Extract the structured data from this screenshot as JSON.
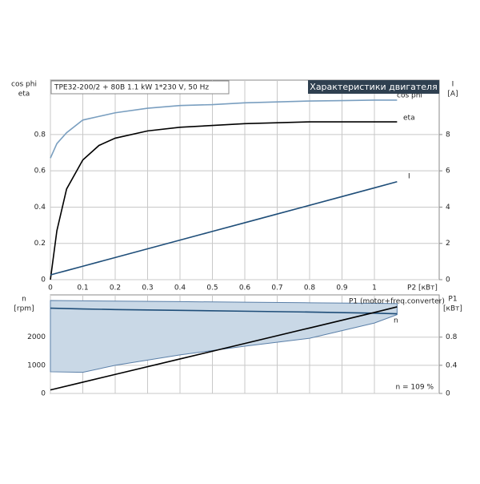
{
  "chart_data": [
    {
      "type": "line",
      "title": "TPE32-200/2 + 80B   1.1 kW   1*230 V, 50 Hz",
      "header": "Характеристики двигателя",
      "ylabel": [
        "cos phi",
        "eta"
      ],
      "y2label": [
        "I",
        "[A]"
      ],
      "xlabel": "P2 [кВт]",
      "x": [
        0,
        0.02,
        0.05,
        0.1,
        0.15,
        0.2,
        0.3,
        0.4,
        0.5,
        0.6,
        0.7,
        0.8,
        0.9,
        1.0,
        1.07
      ],
      "series": [
        {
          "name": "cos phi",
          "color": "#7a9fc0",
          "values": [
            0.67,
            0.75,
            0.81,
            0.88,
            0.9,
            0.92,
            0.945,
            0.96,
            0.965,
            0.975,
            0.98,
            0.985,
            0.987,
            0.99,
            0.99
          ]
        },
        {
          "name": "eta",
          "color": "#000000",
          "values": [
            0,
            0.27,
            0.5,
            0.66,
            0.74,
            0.78,
            0.82,
            0.84,
            0.85,
            0.86,
            0.865,
            0.87,
            0.87,
            0.87,
            0.87
          ]
        },
        {
          "name": "I",
          "color": "#1f4e79",
          "axis": "y2",
          "values": [
            0.26,
            0.36,
            0.5,
            0.74,
            0.98,
            1.22,
            1.7,
            2.18,
            2.66,
            3.14,
            3.62,
            4.1,
            4.58,
            5.06,
            5.4
          ]
        }
      ],
      "xlim": [
        0,
        1.2
      ],
      "xticks": [
        0,
        0.1,
        0.2,
        0.3,
        0.4,
        0.5,
        0.6,
        0.7,
        0.8,
        0.9,
        1.0
      ],
      "ylim": [
        0,
        1.1
      ],
      "yticks": [
        0,
        0.2,
        0.4,
        0.6,
        0.8
      ],
      "y2lim": [
        0,
        11
      ],
      "y2ticks": [
        0,
        2,
        4,
        6,
        8
      ],
      "grid": true
    },
    {
      "type": "line",
      "ylabel": [
        "n",
        "[rpm]"
      ],
      "y2label": [
        "P1",
        "[кВт]"
      ],
      "annotation": "n = 109 %",
      "x": [
        0,
        0.1,
        0.2,
        0.4,
        0.6,
        0.8,
        1.0,
        1.07
      ],
      "band": {
        "color": "#c9d8e6",
        "upper": [
          3300,
          3290,
          3280,
          3260,
          3240,
          3220,
          3200,
          3190
        ],
        "lower": [
          770,
          750,
          1000,
          1370,
          1680,
          1960,
          2500,
          2800
        ]
      },
      "series": [
        {
          "name": "n",
          "color": "#1f4e79",
          "values": [
            3030,
            3000,
            2980,
            2950,
            2920,
            2890,
            2850,
            2830
          ]
        },
        {
          "name": "P1 (motor+freq.converter)",
          "color": "#000000",
          "axis": "y2",
          "values": [
            0.05,
            0.16,
            0.27,
            0.49,
            0.71,
            0.93,
            1.15,
            1.23
          ]
        }
      ],
      "xlim": [
        0,
        1.2
      ],
      "xticks": [
        0,
        0.1,
        0.2,
        0.3,
        0.4,
        0.5,
        0.6,
        0.7,
        0.8,
        0.9,
        1.0
      ],
      "show_xtick_labels": false,
      "ylim": [
        0,
        3500
      ],
      "yticks": [
        0,
        1000,
        2000
      ],
      "y2lim": [
        0,
        1.4
      ],
      "y2ticks": [
        0,
        0.4,
        0.8
      ],
      "grid": true
    }
  ]
}
